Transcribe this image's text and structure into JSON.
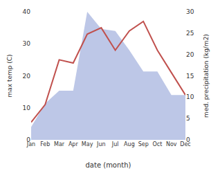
{
  "chart_data": {
    "type": "line",
    "xlabel": "date (month)",
    "ylabel": "max temp (C)",
    "y2label": "med. precipitation (kg/m2)",
    "categories": [
      "Jan",
      "Feb",
      "Mar",
      "Apr",
      "May",
      "Jun",
      "Jul",
      "Aug",
      "Sep",
      "Oct",
      "Nov",
      "Dec"
    ],
    "series": [
      {
        "type": "area",
        "axis": "y2",
        "color": "#bdc7e7",
        "values": [
          3.0,
          8.5,
          11.5,
          11.5,
          30.0,
          26.0,
          25.5,
          21.0,
          16.0,
          16.0,
          10.5,
          10.5
        ]
      },
      {
        "type": "line",
        "color": "#c0504d",
        "values": [
          5.5,
          11.0,
          25.0,
          24.0,
          33.0,
          35.0,
          28.0,
          34.0,
          37.0,
          28.0,
          21.0,
          14.0
        ]
      }
    ],
    "ylim": [
      0,
      40
    ],
    "yticks": [
      0,
      10,
      20,
      30,
      40
    ],
    "y2lim": [
      0,
      30
    ],
    "y2ticks": [
      0,
      5,
      10,
      15,
      20,
      25,
      30
    ],
    "grid": false
  }
}
